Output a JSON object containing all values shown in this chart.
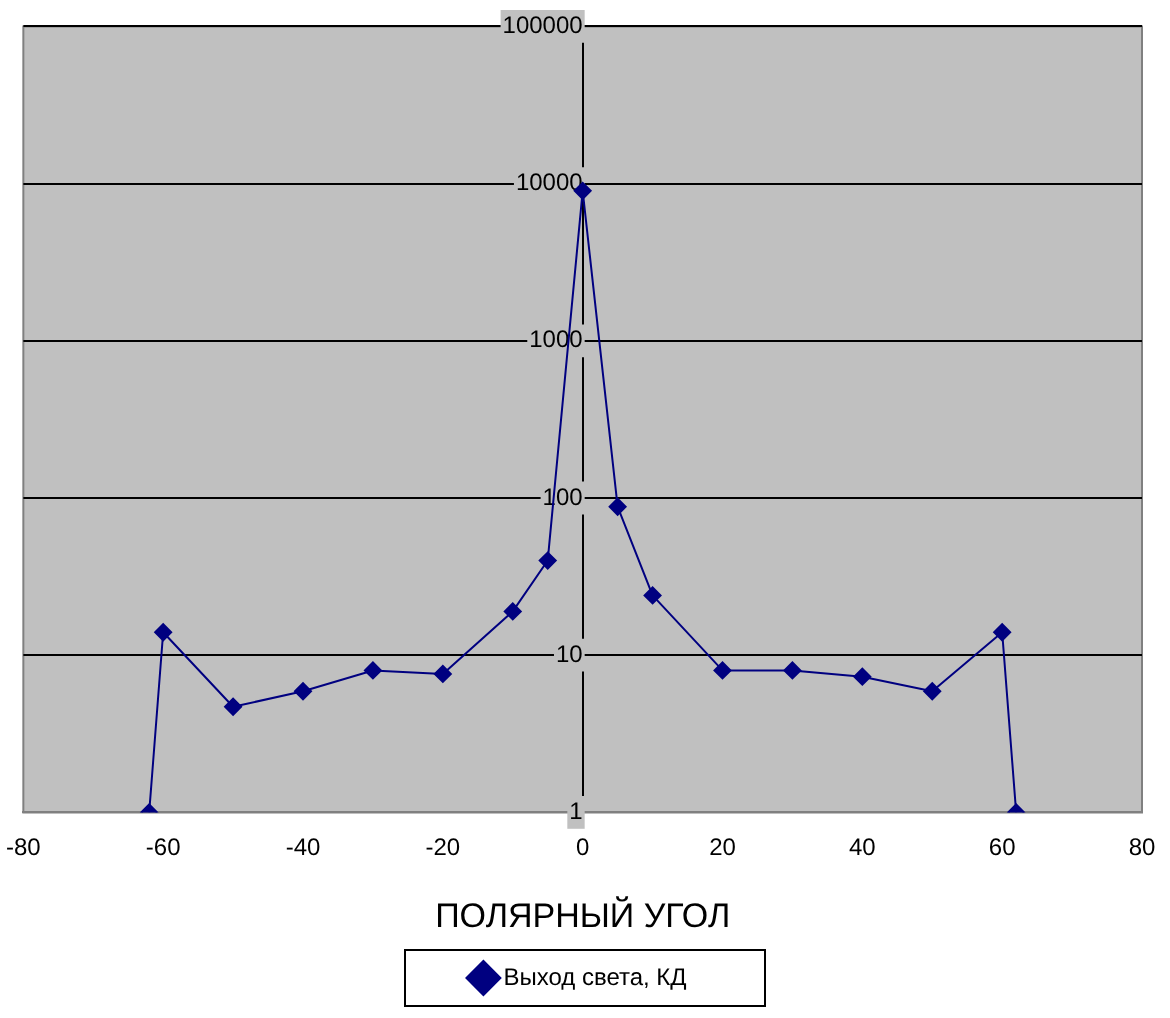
{
  "chart_data": {
    "type": "line",
    "xlabel": "ПОЛЯРНЫЙ УГОЛ",
    "x": [
      -62,
      -60,
      -50,
      -40,
      -30,
      -20,
      -10,
      -5,
      0,
      5,
      10,
      20,
      30,
      40,
      50,
      60,
      62
    ],
    "series": [
      {
        "name": "Выход света, КД",
        "color": "#000080",
        "values": [
          1,
          14,
          4.7,
          5.9,
          8,
          7.6,
          19,
          40,
          9000,
          88,
          24,
          8,
          8,
          7.3,
          5.9,
          14,
          1
        ]
      }
    ],
    "xlim": [
      -80,
      80
    ],
    "xticks": [
      -80,
      -60,
      -40,
      -20,
      0,
      20,
      40,
      60,
      80
    ],
    "ylim": [
      1,
      100000
    ],
    "yticks": [
      1,
      10,
      100,
      1000,
      10000,
      100000
    ],
    "log": "y",
    "grid": "y",
    "legend": "bottom",
    "marker": "diamond",
    "line_style": "solid"
  }
}
